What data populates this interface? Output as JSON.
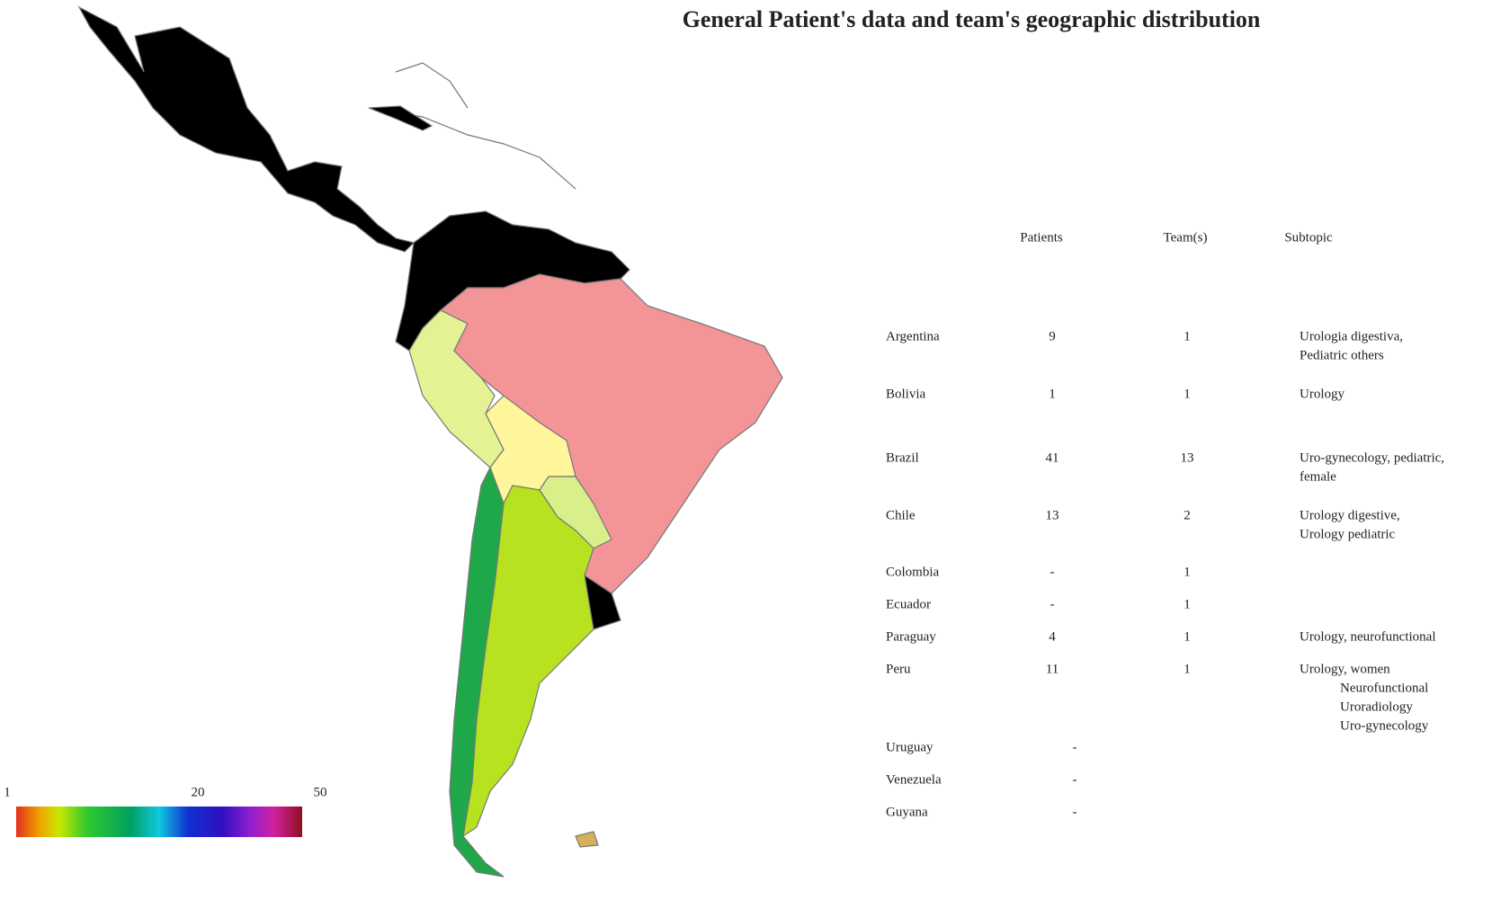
{
  "header": {
    "title": "General Patient's data and team's geographic distribution"
  },
  "table": {
    "headers": [
      "Patients",
      "Team(s)",
      "Subtopic"
    ],
    "rows": [
      {
        "country": "Argentina",
        "patients": "9",
        "teams": "1",
        "subtopic": [
          "Urologia digestiva,",
          "Pediatric others"
        ]
      },
      {
        "country": "Bolivia",
        "patients": "1",
        "teams": "1",
        "subtopic": [
          "Urology"
        ]
      },
      {
        "country": "Brazil",
        "patients": "41",
        "teams": "13",
        "subtopic": [
          "Uro-gynecology, pediatric,",
          "female"
        ]
      },
      {
        "country": "Chile",
        "patients": "13",
        "teams": "2",
        "subtopic": [
          "Urology digestive,",
          "Urology pediatric"
        ]
      },
      {
        "country": "Colombia",
        "patients": "-",
        "teams": "1"
      },
      {
        "country": "Ecuador",
        "patients": "-",
        "teams": "1"
      },
      {
        "country": "Paraguay",
        "patients": "4",
        "teams": "1",
        "subtopic": [
          "Urology, neurofunctional"
        ]
      },
      {
        "country": "Peru",
        "patients": "11",
        "teams": "1",
        "subtopic": [
          "Urology, women",
          "Neurofunctional",
          "Uroradiology",
          "Uro-gynecology"
        ]
      },
      {
        "country": "Uruguay",
        "patients": "-"
      },
      {
        "country": "Venezuela",
        "patients": "-"
      },
      {
        "country": "Guyana",
        "patients": "-"
      }
    ]
  },
  "legend": {
    "labels": [
      "1",
      "20",
      "50"
    ]
  }
}
